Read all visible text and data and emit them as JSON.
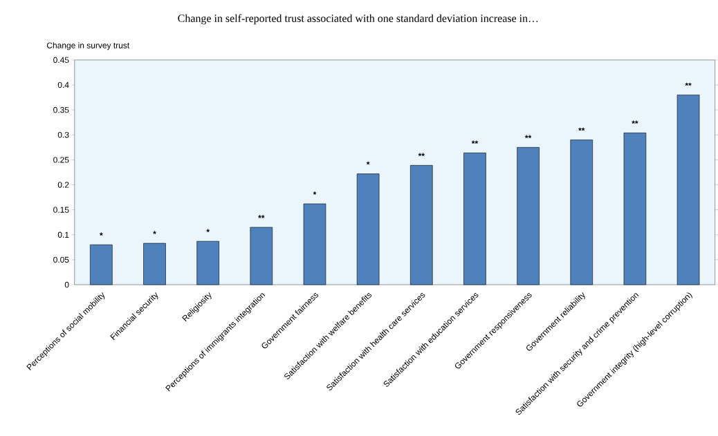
{
  "chart_data": {
    "type": "bar",
    "title": "Change in self-reported trust associated with one standard deviation increase in…",
    "ylabel": "Change in survey trust",
    "categories": [
      "Perceptions of social mobility",
      "Financial security",
      "Religiosity",
      "Perceptions of immigrants integration",
      "Government fairness",
      "Satisfaction with welfare benefits",
      "Satisfaction with health care services",
      "Satisfaction with education services",
      "Government responsiveness",
      "Government reliability",
      "Satisfaction with security and crime prevention",
      "Government integrity (high-level corruption)"
    ],
    "values": [
      0.08,
      0.083,
      0.087,
      0.115,
      0.162,
      0.222,
      0.239,
      0.264,
      0.275,
      0.29,
      0.304,
      0.38
    ],
    "color": "#4f81bd",
    "ylim": [
      0,
      0.45
    ],
    "yticks": [
      0,
      0.05,
      0.1,
      0.15,
      0.2,
      0.25,
      0.3,
      0.35,
      0.4,
      0.45
    ],
    "grid": false,
    "annotations": [
      {
        "text": "*",
        "x": "Perceptions of social mobility",
        "y": 0.08
      },
      {
        "text": "*",
        "x": "Financial security",
        "y": 0.083
      },
      {
        "text": "*",
        "x": "Religiosity",
        "y": 0.087
      },
      {
        "text": "**",
        "x": "Perceptions of immigrants integration",
        "y": 0.115
      },
      {
        "text": "*",
        "x": "Government fairness",
        "y": 0.162
      },
      {
        "text": "*",
        "x": "Satisfaction with welfare benefits",
        "y": 0.222
      },
      {
        "text": "**",
        "x": "Satisfaction with health care services",
        "y": 0.239
      },
      {
        "text": "**",
        "x": "Satisfaction with education services",
        "y": 0.264
      },
      {
        "text": "**",
        "x": "Government responsiveness",
        "y": 0.275
      },
      {
        "text": "**",
        "x": "Government reliability",
        "y": 0.29
      },
      {
        "text": "**",
        "x": "Satisfaction with security and crime prevention",
        "y": 0.304
      },
      {
        "text": "**",
        "x": "Government integrity (high-level corruption)",
        "y": 0.38
      }
    ]
  }
}
